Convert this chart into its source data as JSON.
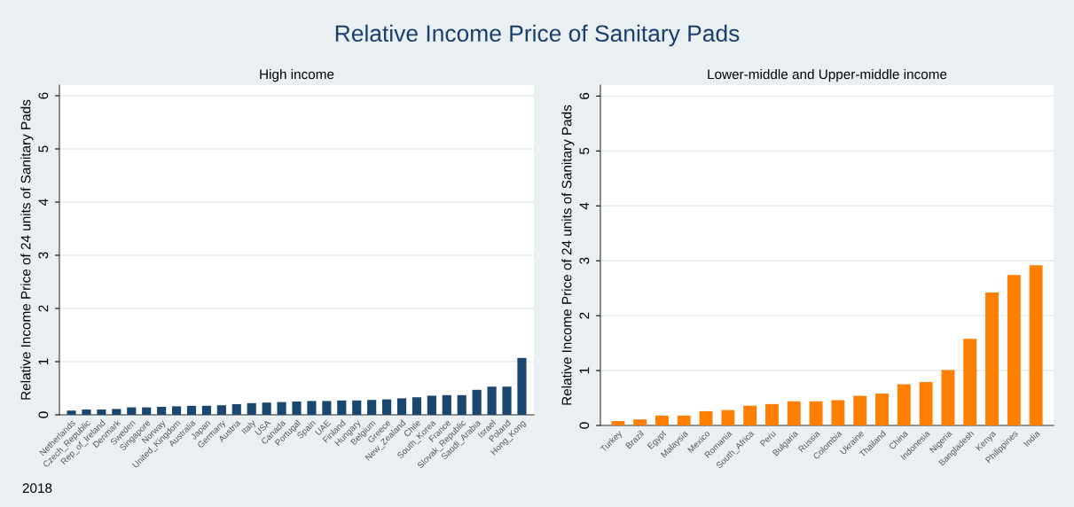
{
  "chart_data": [
    {
      "type": "bar",
      "title": "High income",
      "ylabel": "Relative Income Price of 24 units of Sanitary Pads",
      "categories": [
        "Netherlands",
        "Czech_Republic",
        "Rep_of_Ireland",
        "Denmark",
        "Sweden",
        "Singapore",
        "Norway",
        "United_Kingdom",
        "Australia",
        "Japan",
        "Germany",
        "Austria",
        "Italy",
        "USA",
        "Canada",
        "Portugal",
        "Spain",
        "UAE",
        "Finland",
        "Hungary",
        "Belgium",
        "Greece",
        "New_Zealand",
        "Chile",
        "South_Korea",
        "France",
        "Slovak_Republic",
        "Saudi_Arabia",
        "Israel",
        "Poland",
        "Hong_Kong"
      ],
      "values": [
        0.08,
        0.1,
        0.1,
        0.11,
        0.14,
        0.14,
        0.15,
        0.16,
        0.17,
        0.17,
        0.18,
        0.2,
        0.22,
        0.23,
        0.24,
        0.25,
        0.26,
        0.26,
        0.27,
        0.27,
        0.28,
        0.29,
        0.31,
        0.33,
        0.36,
        0.37,
        0.37,
        0.47,
        0.53,
        0.53,
        1.07
      ],
      "color": "#1a476f",
      "ylim": [
        0,
        6.2
      ],
      "yticks": [
        0,
        1,
        2,
        3,
        4,
        5,
        6
      ],
      "grid": "y",
      "annotations": [
        "Relative Income Price of Sanitary Pads",
        "2018"
      ]
    },
    {
      "type": "bar",
      "title": "Lower-middle and Upper-middle income",
      "ylabel": "Relative Income Price of 24 units of Sanitary Pads",
      "categories": [
        "Turkey",
        "Brazil",
        "Egypt",
        "Malaysia",
        "Mexico",
        "Romania",
        "South_Africa",
        "Peru",
        "Bulgaria",
        "Russia",
        "Colombia",
        "Ukraine",
        "Thailand",
        "China",
        "Indonesia",
        "Nigeria",
        "Bangladesh",
        "Kenya",
        "Philippines",
        "India"
      ],
      "values": [
        0.08,
        0.11,
        0.18,
        0.18,
        0.26,
        0.28,
        0.36,
        0.39,
        0.44,
        0.44,
        0.46,
        0.54,
        0.58,
        0.75,
        0.79,
        1.01,
        1.58,
        2.42,
        2.74,
        2.92
      ],
      "color": "#ff7f00",
      "ylim": [
        0,
        6.2
      ],
      "yticks": [
        0,
        1,
        2,
        3,
        4,
        5,
        6
      ],
      "grid": "y"
    }
  ]
}
